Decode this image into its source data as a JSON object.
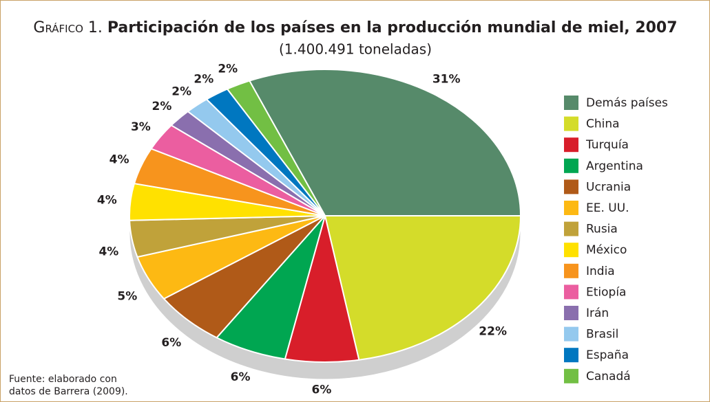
{
  "chart_data": {
    "type": "pie",
    "title_label": "Gráfico 1.",
    "title": "Participación de los países en la producción mundial de miel, 2007",
    "subtitle": "(1.400.491 toneladas)",
    "source": "Fuente: elaborado con datos de Barrera (2009).",
    "categories": [
      "Demás países",
      "China",
      "Turquía",
      "Argentina",
      "Ucrania",
      "EE. UU.",
      "Rusia",
      "México",
      "India",
      "Etiopía",
      "Irán",
      "Brasil",
      "España",
      "Canadá"
    ],
    "values": [
      31,
      22,
      6,
      6,
      6,
      5,
      4,
      4,
      4,
      3,
      2,
      2,
      2,
      2
    ],
    "value_labels": [
      "31%",
      "22%",
      "6%",
      "6%",
      "6%",
      "5%",
      "4%",
      "4%",
      "4%",
      "3%",
      "2%",
      "2%",
      "2%",
      "2%"
    ],
    "colors": [
      "#568a6a",
      "#d4dc2a",
      "#d81e2a",
      "#00a651",
      "#b05a18",
      "#fdb913",
      "#c0a23a",
      "#ffe100",
      "#f7941d",
      "#eb5ea0",
      "#8a6fae",
      "#94c9ee",
      "#0077c0",
      "#72bf44"
    ],
    "legend": "right"
  }
}
